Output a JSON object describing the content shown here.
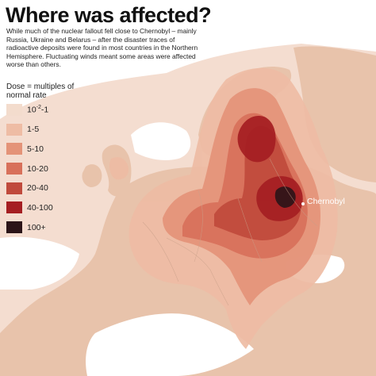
{
  "title": "Where was affected?",
  "intro": "While much of the nuclear fallout fell close to Chernobyl – mainly Russia, Ukraine and Belarus – after the disaster traces of radioactive deposits were found in most countries in the Northern Hemisphere. Fluctuating winds meant some areas were affected worse than others.",
  "legend": {
    "title": "Dose = multiples of normal rate",
    "items": [
      {
        "base": "10",
        "sup": "-2",
        "suffix": "-1",
        "color": "#f3dccd"
      },
      {
        "base": "1-5",
        "sup": "",
        "suffix": "",
        "color": "#eebca4"
      },
      {
        "base": "5-10",
        "sup": "",
        "suffix": "",
        "color": "#e49378"
      },
      {
        "base": "10-20",
        "sup": "",
        "suffix": "",
        "color": "#d8705a"
      },
      {
        "base": "20-40",
        "sup": "",
        "suffix": "",
        "color": "#c04a3c"
      },
      {
        "base": "40-100",
        "sup": "",
        "suffix": "",
        "color": "#a51e22"
      },
      {
        "base": "100+",
        "sup": "",
        "suffix": "",
        "color": "#2b1418"
      }
    ]
  },
  "place": {
    "name": "Chernobyl"
  },
  "colors": {
    "sea": "#ffffff",
    "land": "#e8c3ab",
    "border": "#c9a08a"
  }
}
